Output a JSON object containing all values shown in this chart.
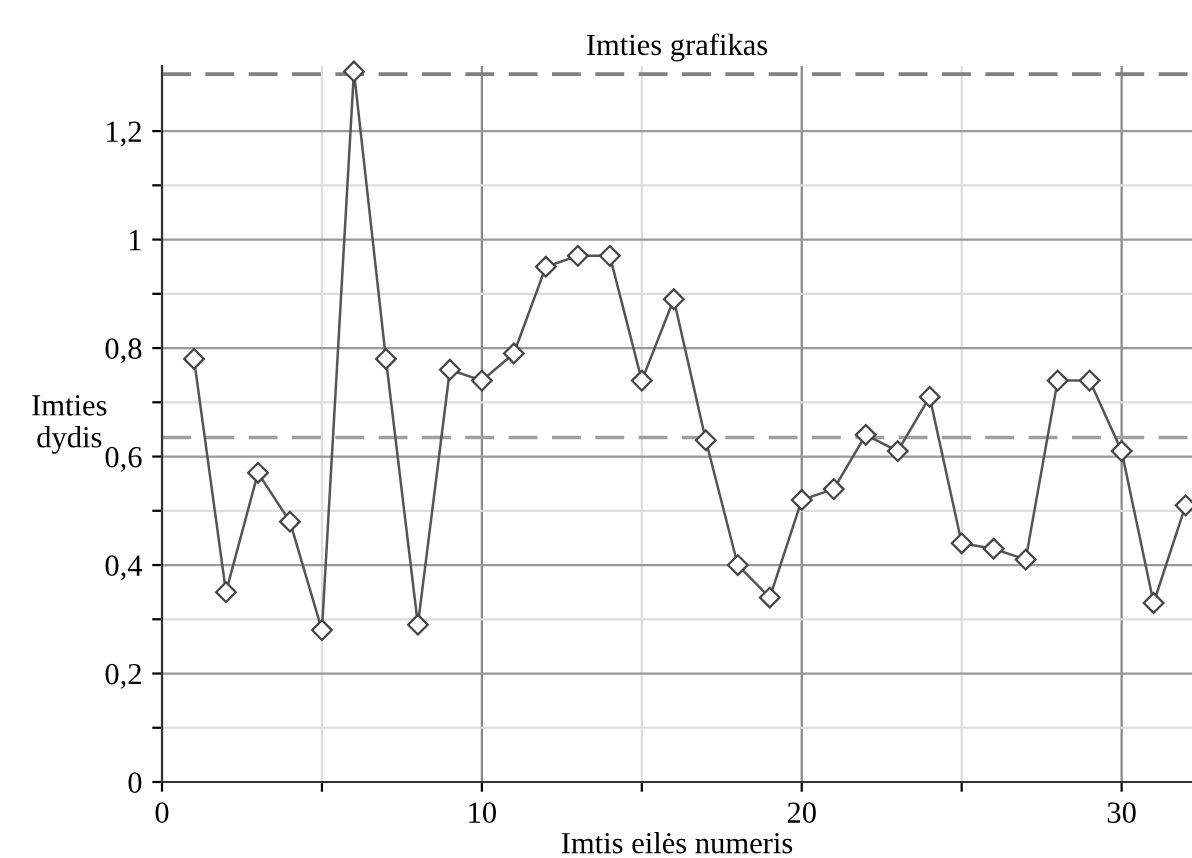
{
  "chart_data": {
    "type": "line",
    "title": "Imties grafikas",
    "xlabel": "Imtis eilės numeris",
    "ylabel": "Imties\ndydis",
    "x": [
      1,
      2,
      3,
      4,
      5,
      6,
      7,
      8,
      9,
      10,
      11,
      12,
      13,
      14,
      15,
      16,
      17,
      18,
      19,
      20,
      21,
      22,
      23,
      24,
      25,
      26,
      27,
      28,
      29,
      30,
      31,
      32
    ],
    "series": [
      {
        "color": "#555555",
        "values": [
          0.78,
          0.35,
          0.57,
          0.48,
          0.28,
          1.31,
          0.78,
          0.29,
          0.76,
          0.74,
          0.79,
          0.95,
          0.97,
          0.97,
          0.74,
          0.89,
          0.63,
          0.4,
          0.34,
          0.52,
          0.54,
          0.64,
          0.61,
          0.71,
          0.44,
          0.43,
          0.41,
          0.74,
          0.74,
          0.61,
          0.33,
          0.51
        ]
      }
    ],
    "marker": "diamond",
    "line_style": "solid",
    "grid": true,
    "legend": false,
    "xlim": [
      0,
      32.2
    ],
    "ylim": [
      0,
      1.32
    ],
    "xticks": [
      0,
      {
        "value": 5,
        "label": null
      },
      10,
      {
        "value": 15,
        "label": null
      },
      20,
      {
        "value": 25,
        "label": null
      },
      30
    ],
    "yticks": [
      0,
      {
        "value": 0.1,
        "label": null
      },
      {
        "value": 0.2,
        "label": "0,2"
      },
      {
        "value": 0.3,
        "label": null
      },
      {
        "value": 0.4,
        "label": "0,4"
      },
      {
        "value": 0.5,
        "label": null
      },
      {
        "value": 0.6,
        "label": "0,6"
      },
      {
        "value": 0.7,
        "label": null
      },
      {
        "value": 0.8,
        "label": "0,8"
      },
      {
        "value": 0.9,
        "label": null
      },
      1,
      {
        "value": 1.1,
        "label": null
      },
      {
        "value": 1.2,
        "label": "1,2"
      }
    ],
    "ref_lines": [
      {
        "axis": "y",
        "value": 1.305,
        "color": "#808080",
        "line_style": "dashed"
      },
      {
        "axis": "y",
        "value": 0.635,
        "color": "#a0a0a0",
        "line_style": "dashed"
      }
    ]
  }
}
